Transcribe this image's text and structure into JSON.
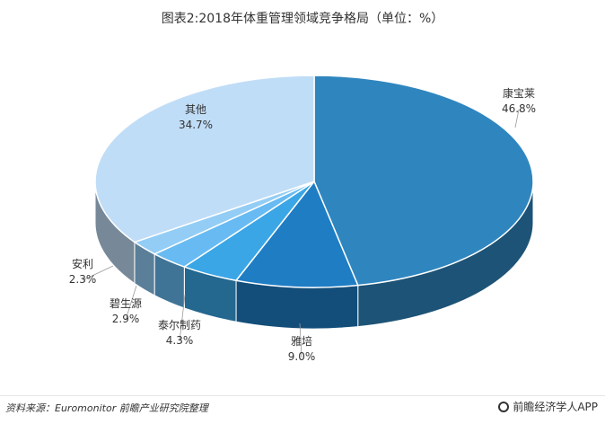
{
  "chart_data": {
    "type": "pie",
    "title": "图表2:2018年体重管理领域竞争格局（单位：%）",
    "slices": [
      {
        "name": "康宝莱",
        "value": 46.8,
        "label": "46.8%",
        "color": "#2f86bf"
      },
      {
        "name": "雅培",
        "value": 9.0,
        "label": "9.0%",
        "color": "#1f7dc4"
      },
      {
        "name": "泰尔制药",
        "value": 4.3,
        "label": "4.3%",
        "color": "#3aa6e6"
      },
      {
        "name": "碧生源",
        "value": 2.9,
        "label": "2.9%",
        "color": "#68bbf2"
      },
      {
        "name": "安利",
        "value": 2.3,
        "label": "2.3%",
        "color": "#93cdf5"
      },
      {
        "name": "其他",
        "value": 34.7,
        "label": "34.7%",
        "color": "#c0ddf7"
      }
    ]
  },
  "footer": {
    "source": "资料来源：Euromonitor 前瞻产业研究院整理",
    "brand": "前瞻经济学人APP"
  }
}
